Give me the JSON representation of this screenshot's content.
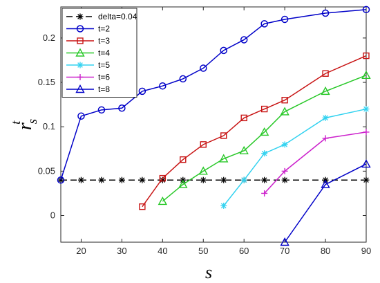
{
  "chart_data": {
    "type": "line",
    "xlabel": "s",
    "ylabel_main": "r",
    "ylabel_sub": "s",
    "ylabel_sup": "t",
    "xlim": [
      15,
      90
    ],
    "ylim": [
      -0.03,
      0.235
    ],
    "xticks": [
      20,
      30,
      40,
      50,
      60,
      70,
      80,
      90
    ],
    "xtick_labels": [
      "20",
      "30",
      "40",
      "50",
      "60",
      "70",
      "80",
      "90"
    ],
    "yticks": [
      0,
      0.05,
      0.1,
      0.15,
      0.2
    ],
    "ytick_labels": [
      "0",
      "0.05",
      "0.1",
      "0.15",
      "0.2"
    ],
    "grid": false,
    "legend_position": "top-left",
    "series": [
      {
        "name": "delta=0.04",
        "color": "#000000",
        "marker": "asterisk",
        "dashed": true,
        "x": [
          15,
          20,
          25,
          30,
          35,
          40,
          45,
          50,
          55,
          60,
          65,
          70,
          80,
          90
        ],
        "y": [
          0.04,
          0.04,
          0.04,
          0.04,
          0.04,
          0.04,
          0.04,
          0.04,
          0.04,
          0.04,
          0.04,
          0.04,
          0.04,
          0.04
        ]
      },
      {
        "name": "t=2",
        "color": "#0000c8",
        "marker": "circle",
        "x": [
          15,
          20,
          25,
          30,
          35,
          40,
          45,
          50,
          55,
          60,
          65,
          70,
          80,
          90
        ],
        "y": [
          0.04,
          0.112,
          0.119,
          0.121,
          0.14,
          0.146,
          0.154,
          0.166,
          0.186,
          0.198,
          0.216,
          0.221,
          0.228,
          0.232
        ]
      },
      {
        "name": "t=3",
        "color": "#c81414",
        "marker": "square",
        "x": [
          35,
          40,
          45,
          50,
          55,
          60,
          65,
          70,
          80,
          90
        ],
        "y": [
          0.01,
          0.042,
          0.063,
          0.08,
          0.09,
          0.11,
          0.12,
          0.13,
          0.16,
          0.18
        ]
      },
      {
        "name": "t=4",
        "color": "#28c828",
        "marker": "triangle",
        "x": [
          40,
          45,
          50,
          55,
          60,
          65,
          70,
          80,
          90
        ],
        "y": [
          0.016,
          0.035,
          0.05,
          0.064,
          0.073,
          0.094,
          0.117,
          0.14,
          0.158
        ]
      },
      {
        "name": "t=5",
        "color": "#32d2f0",
        "marker": "asterisk",
        "x": [
          55,
          60,
          65,
          70,
          80,
          90
        ],
        "y": [
          0.011,
          0.04,
          0.07,
          0.08,
          0.11,
          0.12
        ]
      },
      {
        "name": "t=6",
        "color": "#cc22cc",
        "marker": "plus",
        "x": [
          65,
          70,
          80,
          90
        ],
        "y": [
          0.025,
          0.05,
          0.087,
          0.094
        ]
      },
      {
        "name": "t=8",
        "color": "#0000c8",
        "marker": "triangle",
        "x": [
          70,
          80,
          90
        ],
        "y": [
          -0.03,
          0.035,
          0.058
        ]
      }
    ]
  }
}
